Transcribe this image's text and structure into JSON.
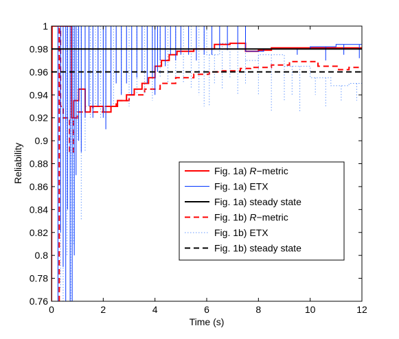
{
  "chart_data": {
    "type": "line",
    "title": "",
    "xlabel": "Time (s)",
    "ylabel": "Reliability",
    "xlim": [
      0,
      12
    ],
    "ylim": [
      0.76,
      1.0
    ],
    "xticks": [
      0,
      2,
      4,
      6,
      8,
      10,
      12
    ],
    "yticks": [
      0.76,
      0.78,
      0.8,
      0.82,
      0.84,
      0.86,
      0.88,
      0.9,
      0.92,
      0.94,
      0.96,
      0.98,
      1
    ],
    "xtick_labels": [
      "0",
      "2",
      "4",
      "6",
      "8",
      "10",
      "12"
    ],
    "ytick_labels": [
      "0.76",
      "0.78",
      "0.8",
      "0.82",
      "0.84",
      "0.86",
      "0.88",
      "0.9",
      "0.92",
      "0.94",
      "0.96",
      "0.98",
      "1"
    ],
    "grid": false,
    "legend_position": "center-right",
    "series": [
      {
        "name": "Fig. 1a) R−metric",
        "legend_prefix": "Fig. 1a) ",
        "legend_italic": "R",
        "legend_suffix": "−metric",
        "color": "#ff0000",
        "style": "solid",
        "width": 2,
        "shape": "hv",
        "points": [
          [
            0,
            0.76
          ],
          [
            0.02,
            1.0
          ],
          [
            0.78,
            1.0
          ],
          [
            0.78,
            0.92
          ],
          [
            0.86,
            0.92
          ],
          [
            0.86,
            0.935
          ],
          [
            1.05,
            0.935
          ],
          [
            1.05,
            0.945
          ],
          [
            1.3,
            0.945
          ],
          [
            1.3,
            0.925
          ],
          [
            1.5,
            0.925
          ],
          [
            1.5,
            0.93
          ],
          [
            2.0,
            0.93
          ],
          [
            2.0,
            0.925
          ],
          [
            2.3,
            0.925
          ],
          [
            2.3,
            0.93
          ],
          [
            2.55,
            0.93
          ],
          [
            2.55,
            0.935
          ],
          [
            2.9,
            0.935
          ],
          [
            2.9,
            0.94
          ],
          [
            3.2,
            0.94
          ],
          [
            3.2,
            0.945
          ],
          [
            3.5,
            0.945
          ],
          [
            3.5,
            0.95
          ],
          [
            3.75,
            0.95
          ],
          [
            3.75,
            0.955
          ],
          [
            4.0,
            0.955
          ],
          [
            4.0,
            0.965
          ],
          [
            4.25,
            0.965
          ],
          [
            4.25,
            0.97
          ],
          [
            4.55,
            0.97
          ],
          [
            4.55,
            0.975
          ],
          [
            4.85,
            0.975
          ],
          [
            4.85,
            0.978
          ],
          [
            5.5,
            0.978
          ],
          [
            5.5,
            0.98
          ],
          [
            6.3,
            0.98
          ],
          [
            6.3,
            0.984
          ],
          [
            6.9,
            0.984
          ],
          [
            6.9,
            0.985
          ],
          [
            7.5,
            0.985
          ],
          [
            7.5,
            0.978
          ],
          [
            8.0,
            0.978
          ],
          [
            8.0,
            0.979
          ],
          [
            8.5,
            0.979
          ],
          [
            8.5,
            0.981
          ],
          [
            10.0,
            0.981
          ],
          [
            12,
            0.981
          ]
        ]
      },
      {
        "name": "Fig. 1a) ETX",
        "legend_prefix": "Fig. 1a) ",
        "legend_italic": "",
        "legend_suffix": "ETX",
        "color": "#0033ff",
        "style": "solid",
        "width": 1,
        "shape": "spikes",
        "base": [
          [
            0,
            1.0
          ],
          [
            7.5,
            1.0
          ],
          [
            7.5,
            0.978
          ],
          [
            8.2,
            0.978
          ],
          [
            8.2,
            0.98
          ],
          [
            10.0,
            0.98
          ],
          [
            10.0,
            0.982
          ],
          [
            11.0,
            0.982
          ],
          [
            11.0,
            0.984
          ],
          [
            12,
            0.984
          ]
        ],
        "spikes": [
          [
            0.25,
            0.76
          ],
          [
            0.35,
            0.82
          ],
          [
            0.45,
            0.79
          ],
          [
            0.55,
            0.76
          ],
          [
            0.62,
            0.84
          ],
          [
            0.72,
            0.76
          ],
          [
            0.8,
            0.76
          ],
          [
            0.88,
            0.8
          ],
          [
            0.95,
            0.87
          ],
          [
            1.05,
            0.9
          ],
          [
            1.15,
            0.89
          ],
          [
            1.3,
            0.92
          ],
          [
            1.45,
            0.93
          ],
          [
            1.6,
            0.92
          ],
          [
            1.8,
            0.93
          ],
          [
            2.0,
            0.92
          ],
          [
            2.1,
            0.91
          ],
          [
            2.3,
            0.93
          ],
          [
            2.5,
            0.95
          ],
          [
            2.7,
            0.94
          ],
          [
            2.9,
            0.95
          ],
          [
            3.1,
            0.94
          ],
          [
            3.3,
            0.955
          ],
          [
            3.5,
            0.96
          ],
          [
            3.7,
            0.95
          ],
          [
            3.9,
            0.955
          ],
          [
            4.0,
            0.94
          ],
          [
            4.1,
            0.96
          ],
          [
            4.2,
            0.97
          ],
          [
            4.4,
            0.965
          ],
          [
            4.6,
            0.975
          ],
          [
            4.8,
            0.97
          ],
          [
            5.0,
            0.975
          ],
          [
            5.3,
            0.975
          ],
          [
            5.6,
            0.97
          ],
          [
            5.9,
            0.975
          ],
          [
            6.2,
            0.975
          ],
          [
            6.5,
            0.98
          ],
          [
            6.8,
            0.979
          ],
          [
            7.2,
            0.98
          ],
          [
            7.5,
            0.978
          ],
          [
            9.5,
            0.975
          ],
          [
            10.6,
            0.97
          ],
          [
            11.3,
            0.975
          ],
          [
            11.9,
            0.972
          ]
        ]
      },
      {
        "name": "Fig. 1a) steady state",
        "legend_prefix": "Fig. 1a) ",
        "legend_italic": "",
        "legend_suffix": "steady state",
        "color": "#000000",
        "style": "solid",
        "width": 2,
        "shape": "line",
        "points": [
          [
            0,
            0.98
          ],
          [
            12,
            0.98
          ]
        ]
      },
      {
        "name": "Fig. 1b) R−metric",
        "legend_prefix": "Fig. 1b) ",
        "legend_italic": "R",
        "legend_suffix": "−metric",
        "color": "#ff0000",
        "style": "dashed",
        "width": 2,
        "shape": "hv",
        "points": [
          [
            0.3,
            0.76
          ],
          [
            0.3,
            0.998
          ],
          [
            0.35,
            0.998
          ],
          [
            0.35,
            0.93
          ],
          [
            0.45,
            0.93
          ],
          [
            0.45,
            0.92
          ],
          [
            0.7,
            0.92
          ],
          [
            0.7,
            0.89
          ],
          [
            0.85,
            0.89
          ],
          [
            0.85,
            0.92
          ],
          [
            1.0,
            0.92
          ],
          [
            1.0,
            0.925
          ],
          [
            1.3,
            0.925
          ],
          [
            1.3,
            0.93
          ],
          [
            1.6,
            0.93
          ],
          [
            1.6,
            0.925
          ],
          [
            2.0,
            0.925
          ],
          [
            2.0,
            0.93
          ],
          [
            2.5,
            0.93
          ],
          [
            2.5,
            0.935
          ],
          [
            3.0,
            0.935
          ],
          [
            3.0,
            0.94
          ],
          [
            3.6,
            0.94
          ],
          [
            3.6,
            0.945
          ],
          [
            4.2,
            0.945
          ],
          [
            4.2,
            0.95
          ],
          [
            4.8,
            0.95
          ],
          [
            4.8,
            0.955
          ],
          [
            5.5,
            0.955
          ],
          [
            5.5,
            0.958
          ],
          [
            6.1,
            0.958
          ],
          [
            6.1,
            0.96
          ],
          [
            6.6,
            0.96
          ],
          [
            6.6,
            0.961
          ],
          [
            7.3,
            0.961
          ],
          [
            7.3,
            0.963
          ],
          [
            7.7,
            0.963
          ],
          [
            7.7,
            0.964
          ],
          [
            8.5,
            0.964
          ],
          [
            8.5,
            0.966
          ],
          [
            9.2,
            0.966
          ],
          [
            9.2,
            0.969
          ],
          [
            10.3,
            0.969
          ],
          [
            10.3,
            0.965
          ],
          [
            11.1,
            0.965
          ],
          [
            11.1,
            0.962
          ],
          [
            11.5,
            0.962
          ],
          [
            11.5,
            0.964
          ],
          [
            12,
            0.964
          ]
        ]
      },
      {
        "name": "Fig. 1b) ETX",
        "legend_prefix": "Fig. 1b) ",
        "legend_italic": "",
        "legend_suffix": "ETX",
        "color": "#6699ff",
        "style": "dotted",
        "width": 1,
        "shape": "spikes",
        "base": [
          [
            0.3,
            1.0
          ],
          [
            6.0,
            1.0
          ],
          [
            6.0,
            0.975
          ],
          [
            6.5,
            0.975
          ],
          [
            6.5,
            0.985
          ],
          [
            7.5,
            0.985
          ],
          [
            7.5,
            0.97
          ],
          [
            8.0,
            0.97
          ],
          [
            8.0,
            0.975
          ],
          [
            9.0,
            0.975
          ],
          [
            9.0,
            0.965
          ],
          [
            10.0,
            0.965
          ],
          [
            10.0,
            0.955
          ],
          [
            10.8,
            0.955
          ],
          [
            10.8,
            0.948
          ],
          [
            11.5,
            0.948
          ],
          [
            11.5,
            0.95
          ],
          [
            12,
            0.95
          ]
        ],
        "spikes": [
          [
            0.35,
            0.77
          ],
          [
            0.45,
            0.76
          ],
          [
            0.6,
            0.8
          ],
          [
            0.75,
            0.76
          ],
          [
            0.85,
            0.81
          ],
          [
            1.0,
            0.9
          ],
          [
            1.15,
            0.83
          ],
          [
            1.3,
            0.89
          ],
          [
            1.5,
            0.92
          ],
          [
            1.7,
            0.93
          ],
          [
            1.9,
            0.92
          ],
          [
            2.1,
            0.92
          ],
          [
            2.4,
            0.93
          ],
          [
            2.7,
            0.94
          ],
          [
            3.0,
            0.93
          ],
          [
            3.3,
            0.94
          ],
          [
            3.6,
            0.94
          ],
          [
            3.9,
            0.935
          ],
          [
            4.2,
            0.955
          ],
          [
            4.5,
            0.95
          ],
          [
            4.8,
            0.955
          ],
          [
            5.1,
            0.95
          ],
          [
            5.4,
            0.945
          ],
          [
            5.7,
            0.94
          ],
          [
            5.9,
            0.93
          ],
          [
            6.1,
            0.93
          ],
          [
            6.3,
            0.95
          ],
          [
            6.6,
            0.945
          ],
          [
            6.9,
            0.955
          ],
          [
            7.2,
            0.94
          ],
          [
            7.5,
            0.95
          ],
          [
            8.0,
            0.94
          ],
          [
            8.5,
            0.925
          ],
          [
            9.0,
            0.935
          ],
          [
            9.3,
            0.94
          ],
          [
            9.6,
            0.925
          ],
          [
            10.2,
            0.94
          ],
          [
            10.6,
            0.93
          ],
          [
            11.2,
            0.935
          ],
          [
            11.8,
            0.935
          ]
        ]
      },
      {
        "name": "Fig. 1b) steady state",
        "legend_prefix": "Fig. 1b) ",
        "legend_italic": "",
        "legend_suffix": "steady state",
        "color": "#000000",
        "style": "dashed",
        "width": 2,
        "shape": "line",
        "points": [
          [
            0,
            0.96
          ],
          [
            12,
            0.96
          ]
        ]
      }
    ]
  }
}
